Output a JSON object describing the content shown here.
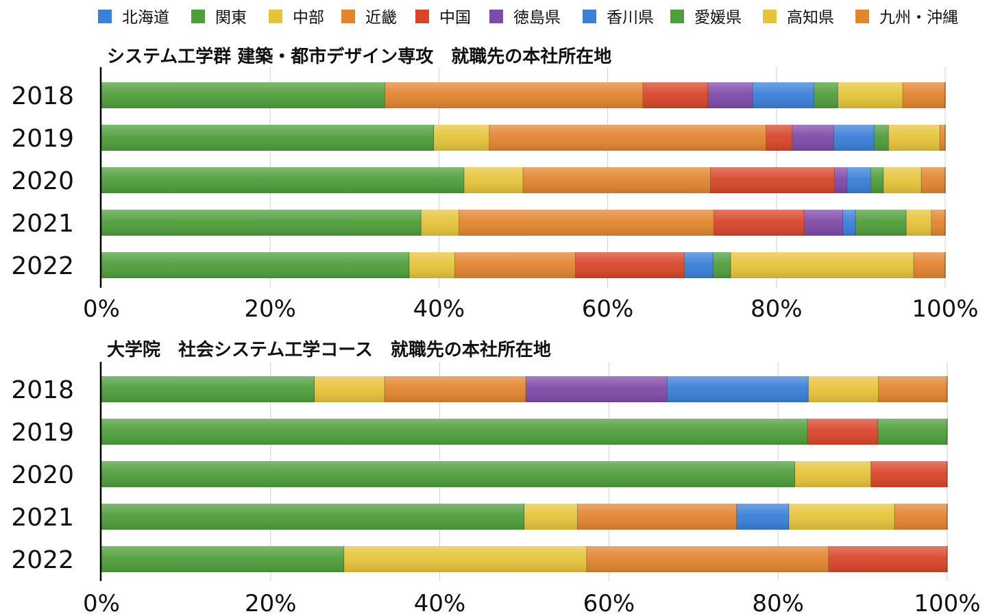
{
  "colors": {
    "北海道": "#3a7fd8",
    "関東": "#4f9e3c",
    "中部": "#e6c43a",
    "近畿": "#e2852f",
    "中国": "#d8462a",
    "徳島県": "#7f4aa8",
    "香川県": "#3a7fd8",
    "愛媛県": "#4f9e3c",
    "高知県": "#e6c43a",
    "九州・沖縄": "#e2852f"
  },
  "legend": [
    "北海道",
    "関東",
    "中部",
    "近畿",
    "中国",
    "徳島県",
    "香川県",
    "愛媛県",
    "高知県",
    "九州・沖縄"
  ],
  "chart_data": [
    {
      "type": "bar",
      "orientation": "horizontal",
      "stacked": "percent",
      "title": "システム工学群 建築・都市デザイン専攻　就職先の本社所在地",
      "categories": [
        "2018",
        "2019",
        "2020",
        "2021",
        "2022"
      ],
      "xticks": [
        "0%",
        "20%",
        "40%",
        "60%",
        "80%",
        "100%"
      ],
      "xlim": [
        0,
        100
      ],
      "grid": true,
      "legend_position": "top",
      "series": [
        {
          "name": "北海道",
          "values": [
            0,
            0,
            0,
            0,
            0
          ]
        },
        {
          "name": "関東",
          "values": [
            33.6,
            39.4,
            43.0,
            37.9,
            36.5
          ]
        },
        {
          "name": "中部",
          "values": [
            0,
            6.6,
            7.0,
            4.5,
            5.4
          ]
        },
        {
          "name": "近畿",
          "values": [
            30.6,
            32.8,
            22.2,
            30.2,
            14.3
          ]
        },
        {
          "name": "中国",
          "values": [
            7.7,
            3.1,
            14.7,
            10.7,
            12.9
          ]
        },
        {
          "name": "徳島県",
          "values": [
            5.3,
            4.9,
            1.5,
            4.6,
            0
          ]
        },
        {
          "name": "香川県",
          "values": [
            7.3,
            4.8,
            2.8,
            1.5,
            3.4
          ]
        },
        {
          "name": "愛媛県",
          "values": [
            2.8,
            1.7,
            1.5,
            6.0,
            2.1
          ]
        },
        {
          "name": "高知県",
          "values": [
            7.7,
            6.1,
            4.5,
            3.0,
            21.7
          ]
        },
        {
          "name": "九州・沖縄",
          "values": [
            5.0,
            0.6,
            2.8,
            1.6,
            3.7
          ]
        }
      ]
    },
    {
      "type": "bar",
      "orientation": "horizontal",
      "stacked": "percent",
      "title": "大学院　社会システム工学コース　就職先の本社所在地",
      "categories": [
        "2018",
        "2019",
        "2020",
        "2021",
        "2022"
      ],
      "xticks": [
        "0%",
        "20%",
        "40%",
        "60%",
        "80%",
        "100%"
      ],
      "xlim": [
        0,
        100
      ],
      "grid": true,
      "series": [
        {
          "name": "北海道",
          "values": [
            0,
            0,
            0,
            0,
            0
          ]
        },
        {
          "name": "関東",
          "values": [
            25.2,
            83.5,
            82.0,
            50.0,
            28.7
          ]
        },
        {
          "name": "中部",
          "values": [
            8.3,
            0,
            9.0,
            6.3,
            28.7
          ]
        },
        {
          "name": "近畿",
          "values": [
            16.7,
            0,
            0,
            18.8,
            28.6
          ]
        },
        {
          "name": "中国",
          "values": [
            0,
            8.3,
            9.0,
            0,
            14.0
          ]
        },
        {
          "name": "徳島県",
          "values": [
            16.7,
            0,
            0,
            0,
            0
          ]
        },
        {
          "name": "香川県",
          "values": [
            16.7,
            0,
            0,
            6.2,
            0
          ]
        },
        {
          "name": "愛媛県",
          "values": [
            0,
            8.2,
            0,
            0,
            0
          ]
        },
        {
          "name": "高知県",
          "values": [
            8.3,
            0,
            0,
            12.5,
            0
          ]
        },
        {
          "name": "九州・沖縄",
          "values": [
            8.1,
            0,
            0,
            6.2,
            0
          ]
        }
      ]
    }
  ]
}
